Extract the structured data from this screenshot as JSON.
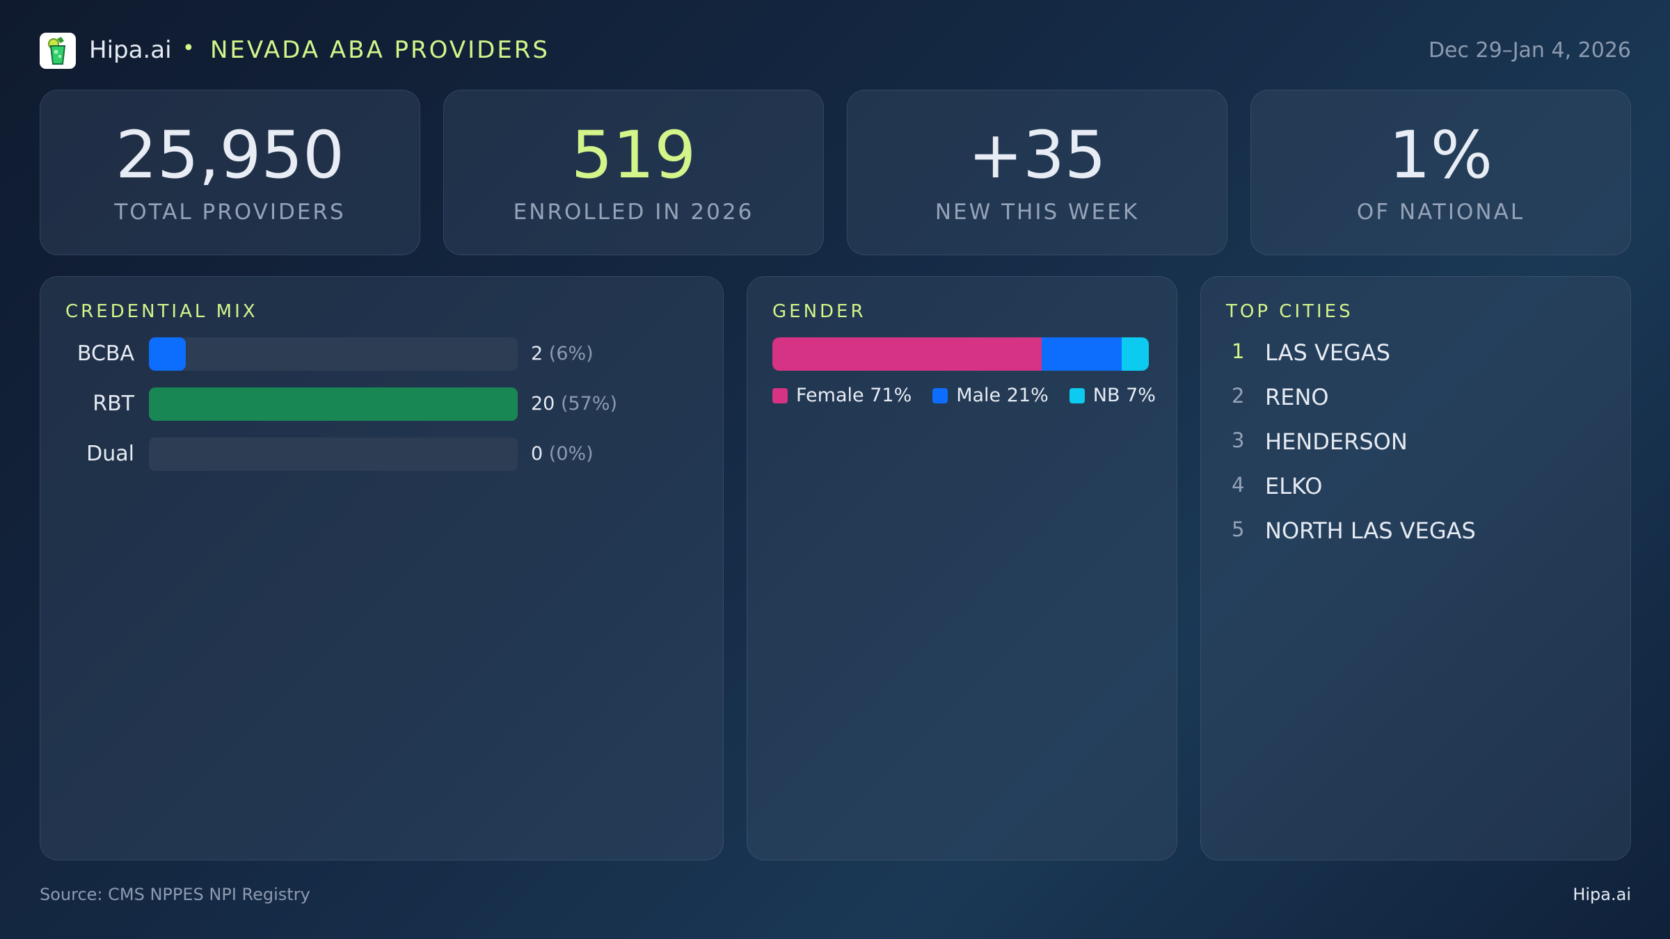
{
  "header": {
    "brand": "Hipa.ai",
    "separator": "•",
    "title": "NEVADA ABA PROVIDERS",
    "date_range": "Dec 29–Jan 4, 2026",
    "logo_icon": "mojito-glass-icon"
  },
  "stats": [
    {
      "value": "25,950",
      "label": "TOTAL PROVIDERS",
      "color": "#ffffff"
    },
    {
      "value": "519",
      "label": "ENROLLED IN 2026",
      "color": "#d4f58a"
    },
    {
      "value": "+35",
      "label": "NEW THIS WEEK",
      "color": "#ffffff"
    },
    {
      "value": "1%",
      "label": "OF NATIONAL",
      "color": "#ffffff"
    }
  ],
  "credential_mix": {
    "title": "CREDENTIAL MIX",
    "rows": [
      {
        "label": "BCBA",
        "count": 2,
        "count_text": "2",
        "pct_text": "(6%)",
        "color": "#0d6efd"
      },
      {
        "label": "RBT",
        "count": 20,
        "count_text": "20",
        "pct_text": "(57%)",
        "color": "#198754"
      },
      {
        "label": "Dual",
        "count": 0,
        "count_text": "0",
        "pct_text": "(0%)",
        "color": "#6f42c1"
      }
    ]
  },
  "gender": {
    "title": "GENDER",
    "segments": [
      {
        "label": "Female 71%",
        "pct": 71.5,
        "color": "#d63384"
      },
      {
        "label": "Male 21%",
        "pct": 21.2,
        "color": "#0d6efd"
      },
      {
        "label": "NB 7%",
        "pct": 7.3,
        "color": "#0dcaf0"
      }
    ]
  },
  "top_cities": {
    "title": "TOP CITIES",
    "items": [
      {
        "rank": "1",
        "name": "LAS VEGAS"
      },
      {
        "rank": "2",
        "name": "RENO"
      },
      {
        "rank": "3",
        "name": "HENDERSON"
      },
      {
        "rank": "4",
        "name": "ELKO"
      },
      {
        "rank": "5",
        "name": "NORTH LAS VEGAS"
      }
    ]
  },
  "footer": {
    "source": "Source: CMS NPPES NPI Registry",
    "brand": "Hipa.ai"
  }
}
